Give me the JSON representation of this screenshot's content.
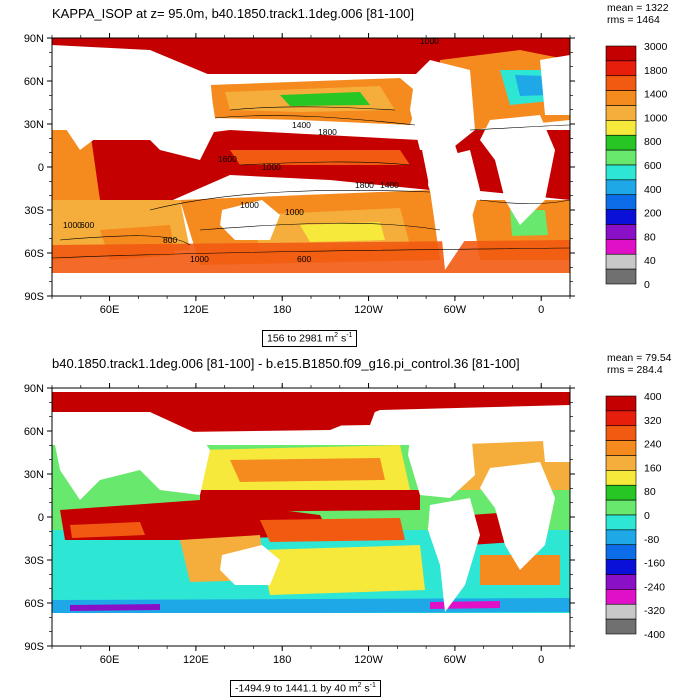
{
  "panels": [
    {
      "title": "KAPPA_ISOP at z=  95.0m, b40.1850.track1.1deg.006 [81-100]",
      "mean_text": "mean = 1322",
      "rms_text": "rms = 1464",
      "range_text": "156 to 2981",
      "range_units": "m",
      "range_exp1": "2",
      "range_s": " s",
      "range_exp2": "-1",
      "colorbar_labels": [
        "3000",
        "1800",
        "1400",
        "1000",
        "800",
        "600",
        "400",
        "200",
        "80",
        "40",
        "0"
      ],
      "colorbar_colors": [
        "#c40000",
        "#e81e0c",
        "#f25a12",
        "#f58a1e",
        "#f5ae3c",
        "#f7e83c",
        "#27c624",
        "#68e86c",
        "#2ee6d4",
        "#1fa8e8",
        "#0d6de8",
        "#0a10d8",
        "#8a10c8",
        "#e010c8",
        "#c8c8c8",
        "#707070"
      ],
      "contour_labels": [
        "1400",
        "1800",
        "1000",
        "1600",
        "1000",
        "1000",
        "1800",
        "1400",
        "1000",
        "600",
        "1000",
        "800",
        "600",
        "1000"
      ]
    },
    {
      "title": "b40.1850.track1.1deg.006 [81-100] - b.e15.B1850.f09_g16.pi_control.36 [81-100]",
      "mean_text": "mean = 79.54",
      "rms_text": "rms = 284.4",
      "range_text": "-1494.9 to 1441.1 by 40",
      "range_units": "m",
      "range_exp1": "2",
      "range_s": " s",
      "range_exp2": "-1",
      "colorbar_labels": [
        "400",
        "320",
        "240",
        "160",
        "80",
        "0",
        "-80",
        "-160",
        "-240",
        "-320",
        "-400"
      ],
      "colorbar_colors": [
        "#c40000",
        "#e81e0c",
        "#f25a12",
        "#f58a1e",
        "#f5ae3c",
        "#f7e83c",
        "#27c624",
        "#68e86c",
        "#2ee6d4",
        "#1fa8e8",
        "#0d6de8",
        "#0a10d8",
        "#8a10c8",
        "#e010c8",
        "#c8c8c8",
        "#707070"
      ]
    }
  ],
  "axes": {
    "lat_labels": [
      "90N",
      "60N",
      "30N",
      "0",
      "30S",
      "60S",
      "90S"
    ],
    "lon_labels": [
      "60E",
      "120E",
      "180",
      "120W",
      "60W",
      "0"
    ]
  }
}
